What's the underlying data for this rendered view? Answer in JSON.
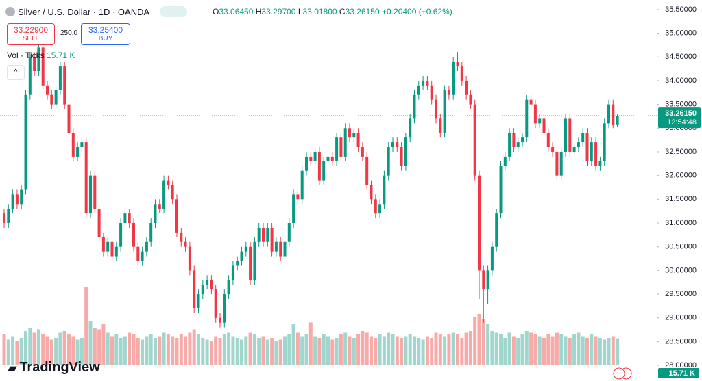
{
  "header": {
    "symbol": "Silver / U.S. Dollar · 1D · OANDA",
    "o_label": "O",
    "o": "33.06450",
    "h_label": "H",
    "h": "33.29700",
    "l_label": "L",
    "l": "33.01800",
    "c_label": "C",
    "c": "33.26150",
    "change": "+0.20400 (+0.62%)",
    "sell_price": "33.22900",
    "sell_label": "SELL",
    "spread": "250.0",
    "buy_price": "33.25400",
    "buy_label": "BUY",
    "vol_label": "Vol · Ticks",
    "vol_value": "15.71 K",
    "logo": "TradingView"
  },
  "chart_data": {
    "type": "candlestick",
    "up_color": "#089981",
    "down_color": "#f23645",
    "volume_up_color": "#9fd6cd",
    "volume_down_color": "#f7aaa8",
    "ylim": [
      27.67,
      35.7
    ],
    "yticks": [
      {
        "value": 35.5,
        "label": "35.50000"
      },
      {
        "value": 35,
        "label": "35.00000"
      },
      {
        "value": 34.5,
        "label": "34.50000"
      },
      {
        "value": 34,
        "label": "34.00000"
      },
      {
        "value": 33.5,
        "label": "33.50000"
      },
      {
        "value": 33,
        "label": "33.00000"
      },
      {
        "value": 32.5,
        "label": "32.50000"
      },
      {
        "value": 32,
        "label": "32.00000"
      },
      {
        "value": 31.5,
        "label": "31.50000"
      },
      {
        "value": 31,
        "label": "31.00000"
      },
      {
        "value": 30.5,
        "label": "30.50000"
      },
      {
        "value": 30,
        "label": "30.00000"
      },
      {
        "value": 29.5,
        "label": "29.50000"
      },
      {
        "value": 29,
        "label": "29.00000"
      },
      {
        "value": 28.5,
        "label": "28.50000"
      },
      {
        "value": 28,
        "label": "28.00000"
      }
    ],
    "last_price": {
      "value": 33.2615,
      "label": "33.26150"
    },
    "countdown": "12:54:48",
    "last_volume_label": "15.71 K",
    "candles": [
      [
        31.2,
        31.3,
        30.9,
        31.0
      ],
      [
        31.0,
        31.4,
        30.9,
        31.3
      ],
      [
        31.3,
        31.7,
        31.2,
        31.6
      ],
      [
        31.6,
        31.7,
        31.3,
        31.4
      ],
      [
        31.4,
        31.8,
        31.3,
        31.7
      ],
      [
        31.7,
        33.8,
        31.6,
        33.7
      ],
      [
        33.7,
        34.6,
        33.6,
        34.5
      ],
      [
        34.5,
        34.6,
        34.1,
        34.2
      ],
      [
        34.2,
        34.8,
        34.1,
        34.7
      ],
      [
        34.7,
        34.8,
        33.8,
        33.9
      ],
      [
        33.9,
        34.0,
        33.6,
        33.7
      ],
      [
        33.7,
        33.8,
        33.4,
        33.5
      ],
      [
        33.5,
        33.9,
        33.4,
        33.8
      ],
      [
        33.8,
        34.4,
        33.7,
        34.3
      ],
      [
        34.3,
        34.4,
        33.4,
        33.5
      ],
      [
        33.5,
        33.6,
        32.8,
        32.9
      ],
      [
        32.9,
        33.0,
        32.3,
        32.4
      ],
      [
        32.4,
        32.7,
        32.3,
        32.6
      ],
      [
        32.6,
        32.8,
        32.5,
        32.7
      ],
      [
        32.7,
        32.8,
        31.1,
        31.2
      ],
      [
        31.2,
        32.1,
        31.1,
        32.0
      ],
      [
        32.0,
        32.1,
        31.2,
        31.3
      ],
      [
        31.3,
        31.4,
        30.6,
        30.7
      ],
      [
        30.7,
        30.8,
        30.3,
        30.4
      ],
      [
        30.4,
        30.7,
        30.3,
        30.6
      ],
      [
        30.6,
        30.7,
        30.2,
        30.3
      ],
      [
        30.3,
        30.6,
        30.2,
        30.5
      ],
      [
        30.5,
        31.1,
        30.4,
        31.0
      ],
      [
        31.0,
        31.3,
        30.9,
        31.2
      ],
      [
        31.2,
        31.3,
        30.9,
        31.0
      ],
      [
        31.0,
        31.1,
        30.4,
        30.5
      ],
      [
        30.5,
        30.6,
        30.1,
        30.2
      ],
      [
        30.2,
        30.5,
        30.1,
        30.4
      ],
      [
        30.4,
        30.7,
        30.3,
        30.6
      ],
      [
        30.6,
        31.1,
        30.5,
        31.0
      ],
      [
        31.0,
        31.5,
        30.9,
        31.4
      ],
      [
        31.4,
        31.5,
        31.2,
        31.3
      ],
      [
        31.3,
        32.0,
        31.2,
        31.9
      ],
      [
        31.9,
        32.0,
        31.7,
        31.8
      ],
      [
        31.8,
        31.9,
        31.4,
        31.5
      ],
      [
        31.5,
        31.6,
        30.7,
        30.8
      ],
      [
        30.8,
        30.9,
        30.5,
        30.6
      ],
      [
        30.6,
        30.7,
        30.4,
        30.5
      ],
      [
        30.5,
        30.6,
        29.9,
        30.0
      ],
      [
        30.0,
        30.1,
        29.1,
        29.2
      ],
      [
        29.2,
        29.6,
        29.1,
        29.5
      ],
      [
        29.5,
        29.8,
        29.4,
        29.7
      ],
      [
        29.7,
        29.9,
        29.6,
        29.8
      ],
      [
        29.8,
        29.9,
        29.5,
        29.6
      ],
      [
        29.6,
        29.7,
        28.9,
        29.0
      ],
      [
        29.0,
        29.1,
        28.8,
        28.9
      ],
      [
        28.9,
        29.6,
        28.8,
        29.5
      ],
      [
        29.5,
        29.9,
        29.4,
        29.8
      ],
      [
        29.8,
        30.2,
        29.7,
        30.1
      ],
      [
        30.1,
        30.3,
        30.0,
        30.2
      ],
      [
        30.2,
        30.5,
        30.1,
        30.4
      ],
      [
        30.4,
        30.6,
        30.3,
        30.5
      ],
      [
        30.5,
        30.6,
        29.7,
        29.8
      ],
      [
        29.8,
        30.7,
        29.7,
        30.6
      ],
      [
        30.6,
        31.0,
        30.5,
        30.9
      ],
      [
        30.9,
        31.0,
        30.5,
        30.6
      ],
      [
        30.6,
        31.0,
        30.5,
        30.9
      ],
      [
        30.9,
        31.0,
        30.3,
        30.4
      ],
      [
        30.4,
        30.7,
        30.3,
        30.6
      ],
      [
        30.6,
        30.7,
        30.2,
        30.3
      ],
      [
        30.3,
        30.7,
        30.2,
        30.6
      ],
      [
        30.6,
        31.1,
        30.5,
        31.0
      ],
      [
        31.0,
        31.7,
        30.9,
        31.6
      ],
      [
        31.6,
        31.7,
        31.4,
        31.5
      ],
      [
        31.5,
        32.2,
        31.4,
        32.1
      ],
      [
        32.1,
        32.5,
        32.0,
        32.4
      ],
      [
        32.4,
        32.5,
        32.2,
        32.3
      ],
      [
        32.3,
        32.6,
        32.2,
        32.5
      ],
      [
        32.5,
        32.6,
        31.8,
        31.9
      ],
      [
        31.9,
        32.4,
        31.8,
        32.3
      ],
      [
        32.3,
        32.5,
        32.2,
        32.4
      ],
      [
        32.4,
        32.5,
        32.2,
        32.3
      ],
      [
        32.3,
        32.9,
        32.2,
        32.8
      ],
      [
        32.8,
        32.9,
        32.3,
        32.4
      ],
      [
        32.4,
        33.1,
        32.3,
        33.0
      ],
      [
        33.0,
        33.1,
        32.7,
        32.8
      ],
      [
        32.8,
        33.0,
        32.7,
        32.9
      ],
      [
        32.9,
        33.0,
        32.5,
        32.6
      ],
      [
        32.6,
        32.7,
        32.3,
        32.4
      ],
      [
        32.4,
        32.5,
        31.7,
        31.8
      ],
      [
        31.8,
        31.9,
        31.4,
        31.5
      ],
      [
        31.5,
        31.6,
        31.1,
        31.2
      ],
      [
        31.2,
        31.5,
        31.1,
        31.4
      ],
      [
        31.4,
        32.1,
        31.3,
        32.0
      ],
      [
        32.0,
        32.7,
        31.9,
        32.6
      ],
      [
        32.6,
        32.8,
        32.5,
        32.7
      ],
      [
        32.7,
        32.8,
        32.5,
        32.6
      ],
      [
        32.6,
        32.7,
        32.1,
        32.2
      ],
      [
        32.2,
        32.9,
        32.1,
        32.8
      ],
      [
        32.8,
        33.3,
        32.7,
        33.2
      ],
      [
        33.2,
        33.8,
        33.1,
        33.7
      ],
      [
        33.7,
        34.0,
        33.6,
        33.9
      ],
      [
        33.9,
        34.1,
        33.8,
        34.0
      ],
      [
        34.0,
        34.1,
        33.8,
        33.9
      ],
      [
        33.9,
        34.0,
        33.5,
        33.6
      ],
      [
        33.6,
        33.7,
        33.1,
        33.2
      ],
      [
        33.2,
        33.3,
        32.8,
        32.9
      ],
      [
        32.9,
        33.9,
        32.8,
        33.8
      ],
      [
        33.8,
        33.9,
        33.6,
        33.7
      ],
      [
        33.7,
        34.5,
        33.6,
        34.4
      ],
      [
        34.4,
        34.6,
        34.2,
        34.3
      ],
      [
        34.3,
        34.4,
        33.9,
        34.0
      ],
      [
        34.0,
        34.1,
        33.6,
        33.7
      ],
      [
        33.7,
        33.8,
        33.4,
        33.5
      ],
      [
        33.5,
        33.6,
        31.9,
        32.0
      ],
      [
        32.0,
        32.1,
        29.4,
        30.0
      ],
      [
        30.0,
        30.1,
        28.9,
        29.6
      ],
      [
        29.6,
        30.1,
        29.3,
        30.0
      ],
      [
        30.0,
        30.6,
        29.9,
        30.5
      ],
      [
        30.5,
        31.3,
        30.4,
        31.2
      ],
      [
        31.2,
        32.3,
        31.1,
        32.2
      ],
      [
        32.2,
        32.5,
        32.1,
        32.4
      ],
      [
        32.4,
        33.0,
        32.3,
        32.9
      ],
      [
        32.9,
        33.0,
        32.5,
        32.6
      ],
      [
        32.6,
        32.8,
        32.5,
        32.7
      ],
      [
        32.7,
        32.9,
        32.6,
        32.8
      ],
      [
        32.8,
        33.7,
        32.7,
        33.6
      ],
      [
        33.6,
        33.7,
        33.4,
        33.5
      ],
      [
        33.5,
        33.6,
        33.0,
        33.1
      ],
      [
        33.1,
        33.3,
        33.0,
        33.2
      ],
      [
        33.2,
        33.3,
        32.8,
        32.9
      ],
      [
        32.9,
        33.0,
        32.5,
        32.6
      ],
      [
        32.6,
        32.7,
        32.4,
        32.5
      ],
      [
        32.5,
        32.6,
        31.9,
        32.0
      ],
      [
        32.0,
        32.6,
        31.9,
        32.5
      ],
      [
        32.5,
        33.3,
        32.4,
        33.2
      ],
      [
        33.2,
        33.3,
        32.4,
        32.5
      ],
      [
        32.5,
        32.7,
        32.4,
        32.6
      ],
      [
        32.6,
        32.8,
        32.5,
        32.7
      ],
      [
        32.7,
        33.0,
        32.6,
        32.9
      ],
      [
        32.9,
        33.0,
        32.2,
        32.3
      ],
      [
        32.3,
        32.8,
        32.2,
        32.7
      ],
      [
        32.7,
        32.8,
        32.1,
        32.2
      ],
      [
        32.2,
        32.4,
        32.1,
        32.3
      ],
      [
        32.3,
        33.2,
        32.2,
        33.1
      ],
      [
        33.1,
        33.6,
        33.0,
        33.5
      ],
      [
        33.5,
        33.6,
        33.0,
        33.06
      ],
      [
        33.0645,
        33.297,
        33.018,
        33.2615
      ]
    ],
    "volume": [
      18,
      15,
      17,
      14,
      16,
      20,
      22,
      19,
      21,
      18,
      17,
      15,
      16,
      19,
      20,
      18,
      17,
      15,
      16,
      46,
      26,
      22,
      21,
      24,
      19,
      17,
      18,
      16,
      17,
      19,
      18,
      16,
      15,
      17,
      18,
      16,
      17,
      19,
      18,
      17,
      16,
      18,
      17,
      19,
      21,
      18,
      16,
      15,
      14,
      17,
      16,
      18,
      19,
      17,
      16,
      15,
      17,
      19,
      18,
      16,
      17,
      15,
      16,
      14,
      15,
      17,
      18,
      24,
      19,
      17,
      18,
      25,
      17,
      16,
      18,
      17,
      15,
      16,
      18,
      19,
      17,
      16,
      18,
      20,
      19,
      17,
      16,
      18,
      17,
      19,
      18,
      17,
      16,
      17,
      18,
      17,
      16,
      15,
      17,
      16,
      19,
      18,
      17,
      18,
      19,
      18,
      16,
      19,
      20,
      28,
      30,
      27,
      24,
      20,
      19,
      18,
      16,
      19,
      17,
      16,
      18,
      20,
      19,
      18,
      17,
      16,
      18,
      17,
      19,
      18,
      17,
      16,
      18,
      19,
      17,
      16,
      18,
      17,
      16,
      15,
      16,
      17,
      15.71
    ]
  }
}
